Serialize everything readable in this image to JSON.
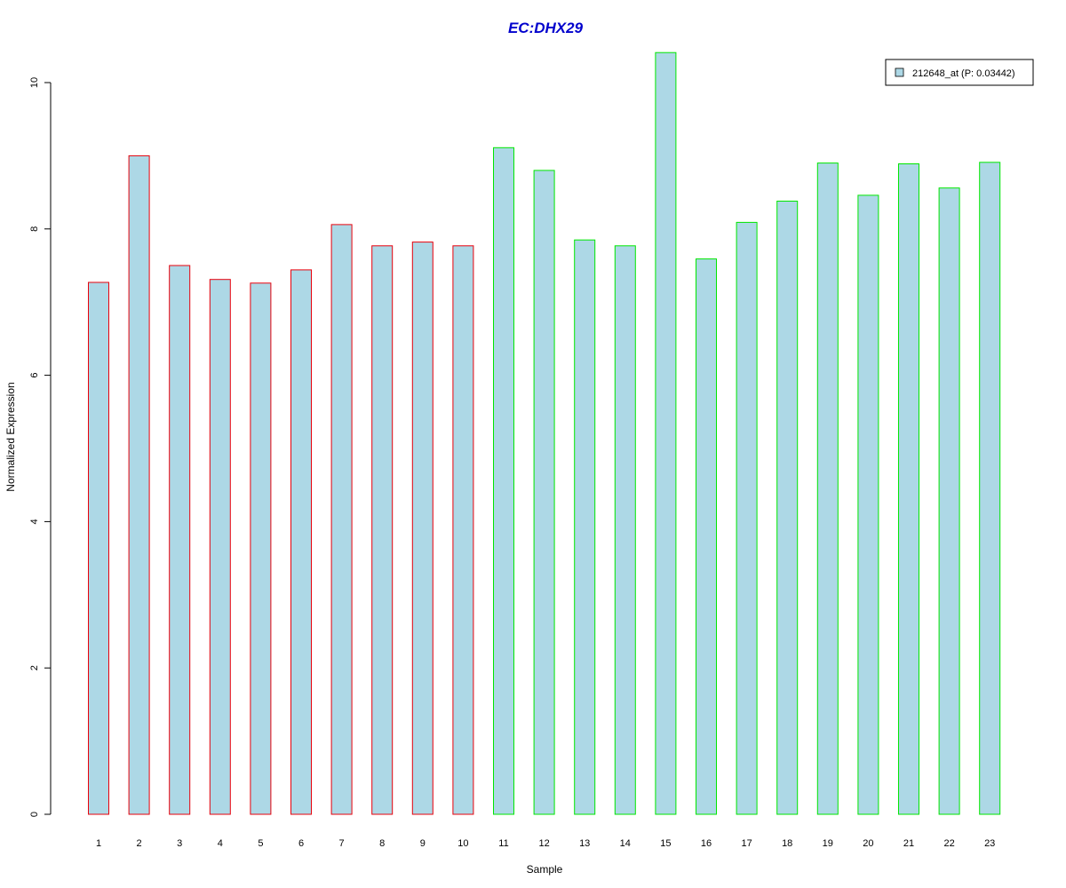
{
  "chart_data": {
    "type": "bar",
    "title": "EC:DHX29",
    "xlabel": "Sample",
    "ylabel": "Normalized Expression",
    "categories": [
      "1",
      "2",
      "3",
      "4",
      "5",
      "6",
      "7",
      "8",
      "9",
      "10",
      "11",
      "12",
      "13",
      "14",
      "15",
      "16",
      "17",
      "18",
      "19",
      "20",
      "21",
      "22",
      "23"
    ],
    "series": [
      {
        "name": "212648_at (P: 0.03442)",
        "values": [
          7.27,
          9.0,
          7.5,
          7.31,
          7.26,
          7.44,
          8.06,
          7.77,
          7.82,
          7.77,
          9.11,
          8.8,
          7.85,
          7.77,
          10.41,
          7.59,
          8.09,
          8.38,
          8.9,
          8.46,
          8.89,
          8.56,
          8.91
        ]
      }
    ],
    "group_outline_colors": [
      "#e8000b",
      "#e8000b",
      "#e8000b",
      "#e8000b",
      "#e8000b",
      "#e8000b",
      "#e8000b",
      "#e8000b",
      "#e8000b",
      "#e8000b",
      "#00e600",
      "#00e600",
      "#00e600",
      "#00e600",
      "#00e600",
      "#00e600",
      "#00e600",
      "#00e600",
      "#00e600",
      "#00e600",
      "#00e600",
      "#00e600",
      "#00e600"
    ],
    "y_ticks": [
      "0",
      "2",
      "4",
      "6",
      "8",
      "10"
    ],
    "ylim": [
      0,
      10.5
    ],
    "legend_position": "top-right",
    "grid": false,
    "colors": {
      "bar_fill": "#add8e6",
      "title": "#0000cd",
      "axis": "#000000"
    }
  }
}
